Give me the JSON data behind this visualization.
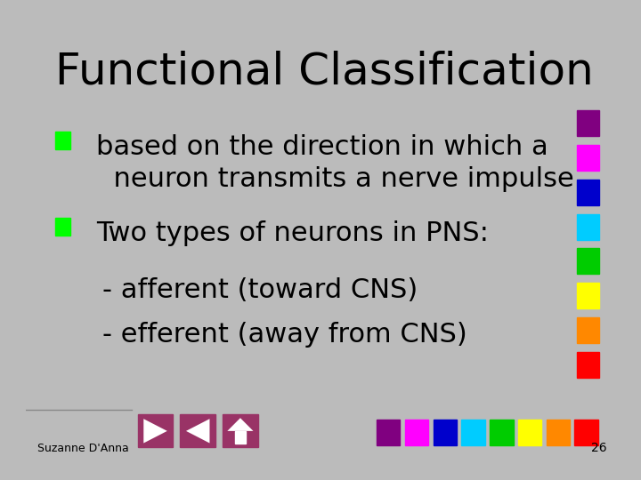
{
  "title": "Functional Classification",
  "bullet1_line1": "based on the direction in which a",
  "bullet1_line2": "  neuron transmits a nerve impulse",
  "bullet2": "Two types of neurons in PNS:",
  "sub1": "- afferent (toward CNS)",
  "sub2": "- efferent (away from CNS)",
  "bullet_color": "#00ff00",
  "title_fontsize": 36,
  "bullet_fontsize": 22,
  "sub_fontsize": 22,
  "bg_color": "#ffffff",
  "slide_bg": "#bbbbbb",
  "text_color": "#000000",
  "footer_text": "Suzanne D'Anna",
  "page_num": "26",
  "side_squares_col": [
    "#800080",
    "#ff00ff",
    "#0000cc",
    "#00ccff",
    "#00cc00",
    "#ffff00",
    "#ff8800",
    "#ff0000"
  ],
  "bottom_squares_col": [
    "#800080",
    "#ff00ff",
    "#0000cc",
    "#00ccff",
    "#00cc00",
    "#ffff00",
    "#ff8800",
    "#ff0000"
  ],
  "nav_color": "#993366"
}
